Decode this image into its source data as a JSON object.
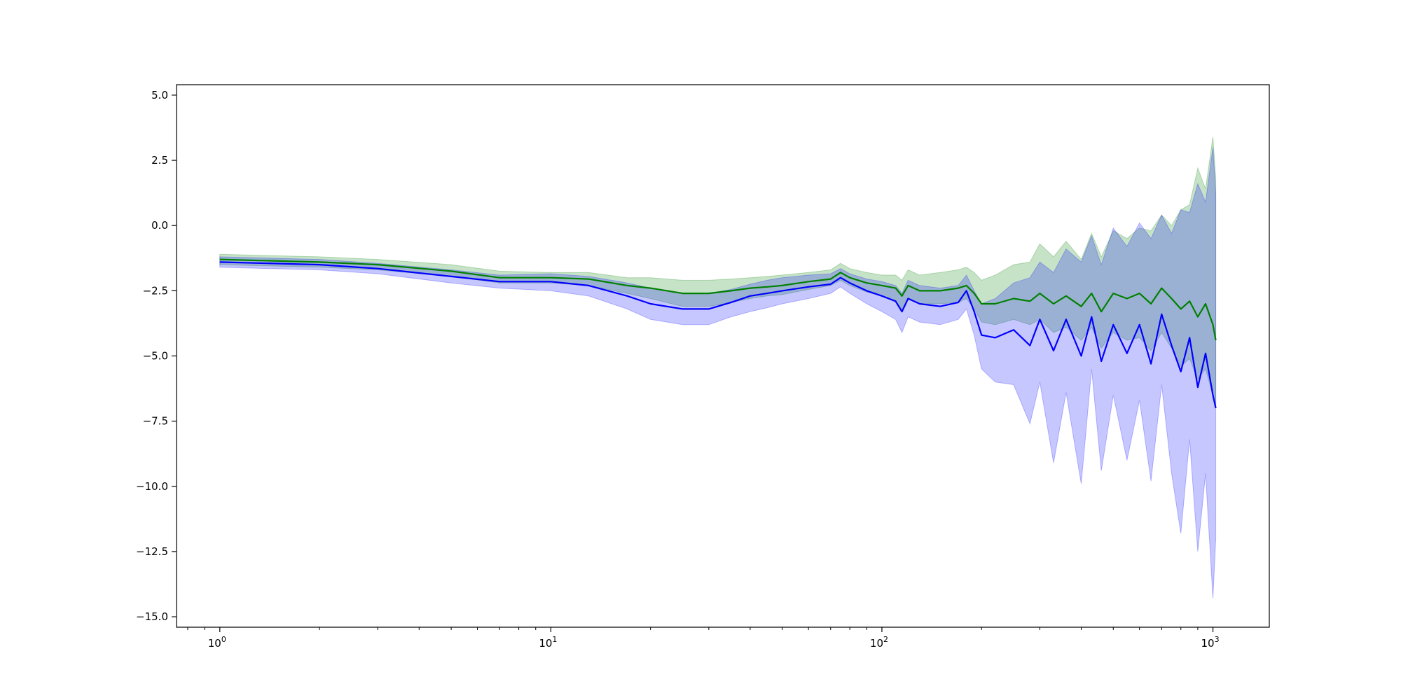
{
  "chart_data": {
    "type": "line",
    "title": "",
    "xlabel": "",
    "ylabel": "",
    "xscale": "log",
    "xlim": [
      0.74,
      1480
    ],
    "ylim": [
      -15.4,
      5.4
    ],
    "grid": false,
    "legend": "none",
    "x_ticks": [
      {
        "value": 1,
        "base": "10",
        "exp": "0"
      },
      {
        "value": 10,
        "base": "10",
        "exp": "1"
      },
      {
        "value": 100,
        "base": "10",
        "exp": "2"
      },
      {
        "value": 1000,
        "base": "10",
        "exp": "3"
      }
    ],
    "y_ticks": [
      {
        "value": 5.0,
        "label": "5.0"
      },
      {
        "value": 2.5,
        "label": "2.5"
      },
      {
        "value": 0.0,
        "label": "0.0"
      },
      {
        "value": -2.5,
        "label": "−2.5"
      },
      {
        "value": -5.0,
        "label": "−5.0"
      },
      {
        "value": -7.5,
        "label": "−7.5"
      },
      {
        "value": -10.0,
        "label": "−10.0"
      },
      {
        "value": -12.5,
        "label": "−12.5"
      },
      {
        "value": -15.0,
        "label": "−15.0"
      }
    ],
    "series": [
      {
        "color": "#008000",
        "band_color": "#008000",
        "x": [
          1,
          2,
          3,
          5,
          7,
          10,
          13,
          17,
          20,
          25,
          30,
          35,
          40,
          45,
          50,
          60,
          70,
          75,
          80,
          90,
          100,
          110,
          115,
          120,
          130,
          150,
          170,
          180,
          190,
          200,
          220,
          250,
          280,
          300,
          330,
          360,
          400,
          430,
          460,
          500,
          550,
          600,
          650,
          700,
          750,
          800,
          850,
          900,
          950,
          1000,
          1020
        ],
        "mean": [
          -1.3,
          -1.4,
          -1.5,
          -1.75,
          -2.0,
          -2.0,
          -2.05,
          -2.3,
          -2.4,
          -2.6,
          -2.6,
          -2.5,
          -2.4,
          -2.35,
          -2.3,
          -2.15,
          -2.05,
          -1.8,
          -2.0,
          -2.2,
          -2.3,
          -2.4,
          -2.7,
          -2.3,
          -2.5,
          -2.5,
          -2.4,
          -2.3,
          -2.6,
          -3.0,
          -3.0,
          -2.8,
          -2.9,
          -2.6,
          -3.0,
          -2.7,
          -3.1,
          -2.6,
          -3.3,
          -2.6,
          -2.8,
          -2.6,
          -3.0,
          -2.4,
          -2.8,
          -3.2,
          -2.9,
          -3.5,
          -3.0,
          -3.8,
          -4.4
        ],
        "lower": [
          -1.5,
          -1.6,
          -1.7,
          -1.95,
          -2.2,
          -2.2,
          -2.3,
          -2.6,
          -2.8,
          -3.1,
          -3.1,
          -2.95,
          -2.8,
          -2.7,
          -2.65,
          -2.45,
          -2.3,
          -2.1,
          -2.3,
          -2.55,
          -2.7,
          -2.9,
          -3.2,
          -2.8,
          -3.0,
          -3.0,
          -2.95,
          -2.8,
          -3.2,
          -3.7,
          -3.8,
          -3.6,
          -3.8,
          -3.6,
          -4.1,
          -3.9,
          -4.4,
          -3.9,
          -4.7,
          -4.1,
          -4.4,
          -4.3,
          -4.8,
          -4.1,
          -4.7,
          -5.4,
          -5.1,
          -5.9,
          -5.5,
          -6.5,
          -7.0
        ],
        "upper": [
          -1.1,
          -1.2,
          -1.3,
          -1.5,
          -1.75,
          -1.8,
          -1.8,
          -2.0,
          -2.0,
          -2.1,
          -2.1,
          -2.05,
          -2.0,
          -1.95,
          -1.9,
          -1.8,
          -1.7,
          -1.45,
          -1.65,
          -1.8,
          -1.9,
          -1.9,
          -2.1,
          -1.7,
          -1.9,
          -1.8,
          -1.7,
          -1.6,
          -1.8,
          -2.1,
          -1.9,
          -1.5,
          -1.4,
          -0.7,
          -1.2,
          -0.6,
          -1.3,
          -0.3,
          -1.2,
          -0.2,
          -0.5,
          -0.1,
          -0.2,
          0.4,
          0.0,
          0.6,
          0.8,
          2.2,
          1.4,
          3.4,
          1.8
        ]
      },
      {
        "color": "#0000ff",
        "band_color": "#0000ff",
        "x": [
          1,
          2,
          3,
          5,
          7,
          10,
          13,
          17,
          20,
          25,
          30,
          35,
          40,
          45,
          50,
          60,
          70,
          75,
          80,
          90,
          100,
          110,
          115,
          120,
          130,
          150,
          170,
          180,
          190,
          200,
          220,
          250,
          280,
          300,
          330,
          360,
          400,
          430,
          460,
          500,
          550,
          600,
          650,
          700,
          750,
          800,
          850,
          900,
          950,
          1000,
          1020
        ],
        "mean": [
          -1.4,
          -1.5,
          -1.65,
          -1.95,
          -2.15,
          -2.15,
          -2.3,
          -2.7,
          -3.0,
          -3.2,
          -3.2,
          -2.95,
          -2.7,
          -2.6,
          -2.5,
          -2.35,
          -2.25,
          -2.0,
          -2.2,
          -2.5,
          -2.7,
          -2.9,
          -3.3,
          -2.8,
          -3.0,
          -3.1,
          -2.95,
          -2.5,
          -3.3,
          -4.2,
          -4.3,
          -4.0,
          -4.6,
          -3.6,
          -4.8,
          -3.6,
          -5.0,
          -3.5,
          -5.2,
          -3.8,
          -4.9,
          -3.8,
          -5.3,
          -3.4,
          -4.6,
          -5.6,
          -4.3,
          -6.2,
          -4.9,
          -6.5,
          -7.0
        ],
        "lower": [
          -1.6,
          -1.7,
          -1.85,
          -2.2,
          -2.4,
          -2.5,
          -2.7,
          -3.2,
          -3.6,
          -3.8,
          -3.8,
          -3.5,
          -3.3,
          -3.15,
          -3.0,
          -2.8,
          -2.6,
          -2.35,
          -2.6,
          -3.0,
          -3.3,
          -3.6,
          -4.1,
          -3.5,
          -3.7,
          -3.8,
          -3.6,
          -3.2,
          -4.2,
          -5.5,
          -6.0,
          -6.1,
          -7.6,
          -6.0,
          -9.1,
          -6.4,
          -9.9,
          -5.5,
          -9.4,
          -6.5,
          -9.0,
          -6.7,
          -9.8,
          -6.1,
          -9.5,
          -11.8,
          -8.2,
          -12.5,
          -9.5,
          -14.3,
          -12.0
        ],
        "upper": [
          -1.2,
          -1.3,
          -1.45,
          -1.7,
          -1.9,
          -1.85,
          -1.95,
          -2.2,
          -2.4,
          -2.6,
          -2.6,
          -2.45,
          -2.25,
          -2.1,
          -2.0,
          -1.9,
          -1.85,
          -1.65,
          -1.85,
          -2.05,
          -2.15,
          -2.3,
          -2.6,
          -2.1,
          -2.3,
          -2.4,
          -2.3,
          -1.9,
          -2.5,
          -3.0,
          -2.8,
          -2.2,
          -2.0,
          -1.4,
          -1.8,
          -0.9,
          -1.4,
          -0.4,
          -1.5,
          -0.1,
          -0.8,
          0.1,
          -0.5,
          0.4,
          -0.3,
          0.6,
          0.5,
          1.6,
          0.9,
          3.0,
          1.2
        ]
      }
    ]
  }
}
